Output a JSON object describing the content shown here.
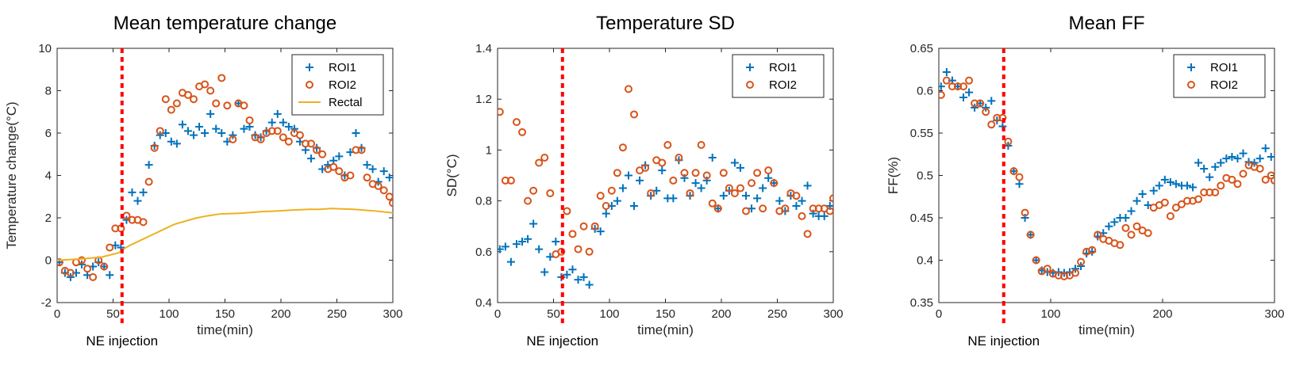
{
  "colors": {
    "roi1": "#0072BD",
    "roi2": "#D95319",
    "rectal": "#EDB120",
    "injection_line": "#FF0000",
    "axes": "#262626"
  },
  "annotation": {
    "label": "NE injection",
    "x": 58
  },
  "chart_data": [
    {
      "type": "scatter",
      "title": "Mean temperature change",
      "xlabel": "time(min)",
      "ylabel": "Temperature change(°C)",
      "xlim": [
        0,
        300
      ],
      "ylim": [
        -2,
        10
      ],
      "xticks": [
        0,
        50,
        100,
        150,
        200,
        250,
        300
      ],
      "yticks": [
        -2,
        0,
        2,
        4,
        6,
        8,
        10
      ],
      "grid": false,
      "legend": "top-right",
      "series": [
        {
          "name": "ROI1",
          "marker": "plus",
          "x": [
            2,
            7,
            12,
            17,
            22,
            27,
            32,
            37,
            42,
            47,
            52,
            57,
            62,
            67,
            72,
            77,
            82,
            87,
            92,
            97,
            102,
            107,
            112,
            117,
            122,
            127,
            132,
            137,
            142,
            147,
            152,
            157,
            162,
            167,
            172,
            177,
            182,
            187,
            192,
            197,
            202,
            207,
            212,
            217,
            222,
            227,
            232,
            237,
            242,
            247,
            252,
            257,
            262,
            267,
            272,
            277,
            282,
            287,
            292,
            297
          ],
          "y": [
            -0.1,
            -0.6,
            -0.8,
            -0.6,
            -0.2,
            -0.7,
            -0.3,
            -0.1,
            -0.3,
            -0.7,
            0.7,
            0.6,
            1.9,
            3.2,
            2.8,
            3.2,
            4.5,
            5.4,
            5.9,
            6.0,
            5.6,
            5.5,
            6.4,
            6.1,
            5.9,
            6.3,
            6.0,
            6.9,
            6.2,
            6.0,
            5.6,
            5.9,
            7.4,
            6.2,
            6.3,
            5.9,
            5.8,
            6.1,
            6.5,
            6.9,
            6.5,
            6.3,
            6.2,
            5.6,
            5.2,
            4.8,
            5.3,
            4.3,
            4.5,
            4.7,
            4.9,
            4.0,
            5.1,
            6.0,
            5.3,
            4.5,
            4.3,
            3.7,
            4.2,
            3.9
          ]
        },
        {
          "name": "ROI2",
          "marker": "circle",
          "x": [
            2,
            7,
            12,
            17,
            22,
            27,
            32,
            37,
            42,
            47,
            52,
            57,
            62,
            67,
            72,
            77,
            82,
            87,
            92,
            97,
            102,
            107,
            112,
            117,
            122,
            127,
            132,
            137,
            142,
            147,
            152,
            157,
            162,
            167,
            172,
            177,
            182,
            187,
            192,
            197,
            202,
            207,
            212,
            217,
            222,
            227,
            232,
            237,
            242,
            247,
            252,
            257,
            262,
            267,
            272,
            277,
            282,
            287,
            292,
            297,
            300
          ],
          "y": [
            -0.1,
            -0.5,
            -0.6,
            -0.1,
            0.0,
            -0.4,
            -0.8,
            0.0,
            -0.3,
            0.6,
            1.5,
            1.5,
            2.1,
            1.9,
            1.9,
            1.8,
            3.7,
            5.3,
            6.1,
            7.6,
            7.1,
            7.4,
            7.9,
            7.8,
            7.6,
            8.2,
            8.3,
            8.0,
            7.4,
            8.6,
            7.3,
            5.7,
            7.4,
            7.3,
            6.6,
            5.8,
            5.7,
            6.0,
            6.1,
            6.1,
            5.8,
            5.6,
            6.0,
            5.9,
            5.5,
            5.5,
            5.2,
            5.0,
            4.3,
            4.4,
            4.2,
            3.9,
            4.0,
            5.2,
            5.2,
            3.9,
            3.6,
            3.5,
            3.3,
            3.0,
            2.7
          ]
        },
        {
          "name": "Rectal",
          "marker": "line",
          "x": [
            0,
            20,
            40,
            55,
            60,
            65,
            75,
            85,
            95,
            105,
            115,
            125,
            135,
            145,
            155,
            165,
            175,
            185,
            195,
            205,
            215,
            225,
            235,
            245,
            255,
            265,
            275,
            285,
            295,
            300
          ],
          "y": [
            0.0,
            0.05,
            0.15,
            0.35,
            0.55,
            0.7,
            0.95,
            1.2,
            1.45,
            1.7,
            1.85,
            2.0,
            2.1,
            2.18,
            2.2,
            2.22,
            2.26,
            2.3,
            2.32,
            2.35,
            2.38,
            2.4,
            2.4,
            2.44,
            2.42,
            2.4,
            2.36,
            2.32,
            2.26,
            2.24
          ]
        }
      ]
    },
    {
      "type": "scatter",
      "title": "Temperature SD",
      "xlabel": "time(min)",
      "ylabel": "SD(°C)",
      "xlim": [
        0,
        300
      ],
      "ylim": [
        0.4,
        1.4
      ],
      "xticks": [
        0,
        50,
        100,
        150,
        200,
        250,
        300
      ],
      "yticks": [
        0.4,
        0.6,
        0.8,
        1,
        1.2,
        1.4
      ],
      "grid": false,
      "legend": "top-right",
      "series": [
        {
          "name": "ROI1",
          "marker": "plus",
          "x": [
            2,
            7,
            12,
            17,
            22,
            27,
            32,
            37,
            42,
            47,
            52,
            57,
            62,
            67,
            72,
            77,
            82,
            87,
            92,
            97,
            102,
            107,
            112,
            117,
            122,
            127,
            132,
            137,
            142,
            147,
            152,
            157,
            162,
            167,
            172,
            177,
            182,
            187,
            192,
            197,
            202,
            207,
            212,
            217,
            222,
            227,
            232,
            237,
            242,
            247,
            252,
            257,
            262,
            267,
            272,
            277,
            282,
            287,
            292,
            297
          ],
          "y": [
            0.61,
            0.62,
            0.56,
            0.63,
            0.64,
            0.65,
            0.71,
            0.61,
            0.52,
            0.58,
            0.64,
            0.5,
            0.51,
            0.53,
            0.49,
            0.5,
            0.47,
            0.69,
            0.68,
            0.75,
            0.78,
            0.8,
            0.85,
            0.9,
            0.78,
            0.88,
            0.94,
            0.82,
            0.84,
            0.92,
            0.81,
            0.81,
            0.96,
            0.89,
            0.82,
            0.87,
            0.85,
            0.88,
            0.97,
            0.77,
            0.82,
            0.84,
            0.95,
            0.93,
            0.82,
            0.77,
            0.81,
            0.85,
            0.89,
            0.87,
            0.8,
            0.76,
            0.82,
            0.78,
            0.8,
            0.86,
            0.75,
            0.74,
            0.74,
            0.78
          ]
        },
        {
          "name": "ROI2",
          "marker": "circle",
          "x": [
            2,
            7,
            12,
            17,
            22,
            27,
            32,
            37,
            42,
            47,
            52,
            57,
            62,
            67,
            72,
            77,
            82,
            87,
            92,
            97,
            102,
            107,
            112,
            117,
            122,
            127,
            132,
            137,
            142,
            147,
            152,
            157,
            162,
            167,
            172,
            177,
            182,
            187,
            192,
            197,
            202,
            207,
            212,
            217,
            222,
            227,
            232,
            237,
            242,
            247,
            252,
            257,
            262,
            267,
            272,
            277,
            282,
            287,
            292,
            297,
            300
          ],
          "y": [
            1.15,
            0.88,
            0.88,
            1.11,
            1.07,
            0.8,
            0.84,
            0.95,
            0.97,
            0.83,
            0.59,
            0.6,
            0.76,
            0.67,
            0.61,
            0.7,
            0.6,
            0.7,
            0.82,
            0.78,
            0.84,
            0.91,
            1.01,
            1.24,
            1.14,
            0.92,
            0.93,
            0.83,
            0.96,
            0.95,
            1.02,
            0.88,
            0.97,
            0.91,
            0.83,
            0.91,
            1.02,
            0.9,
            0.79,
            0.77,
            0.91,
            0.85,
            0.83,
            0.85,
            0.76,
            0.87,
            0.91,
            0.77,
            0.92,
            0.87,
            0.76,
            0.77,
            0.83,
            0.82,
            0.74,
            0.67,
            0.77,
            0.77,
            0.77,
            0.76,
            0.81
          ]
        }
      ]
    },
    {
      "type": "scatter",
      "title": "Mean FF",
      "xlabel": "time(min)",
      "ylabel": "FF(%)",
      "xlim": [
        0,
        300
      ],
      "ylim": [
        0.35,
        0.65
      ],
      "xticks": [
        0,
        100,
        200,
        300
      ],
      "yticks": [
        0.35,
        0.4,
        0.45,
        0.5,
        0.55,
        0.6,
        0.65
      ],
      "grid": false,
      "legend": "top-right",
      "series": [
        {
          "name": "ROI1",
          "marker": "plus",
          "x": [
            2,
            7,
            12,
            17,
            22,
            27,
            32,
            37,
            42,
            47,
            52,
            57,
            62,
            67,
            72,
            77,
            82,
            87,
            92,
            97,
            102,
            107,
            112,
            117,
            122,
            127,
            132,
            137,
            142,
            147,
            152,
            157,
            162,
            167,
            172,
            177,
            182,
            187,
            192,
            197,
            202,
            207,
            212,
            217,
            222,
            227,
            232,
            237,
            242,
            247,
            252,
            257,
            262,
            267,
            272,
            277,
            282,
            287,
            292,
            297
          ],
          "y": [
            0.605,
            0.622,
            0.612,
            0.605,
            0.592,
            0.598,
            0.58,
            0.585,
            0.58,
            0.588,
            0.565,
            0.558,
            0.535,
            0.505,
            0.49,
            0.45,
            0.43,
            0.4,
            0.388,
            0.386,
            0.385,
            0.386,
            0.385,
            0.386,
            0.39,
            0.393,
            0.408,
            0.41,
            0.428,
            0.432,
            0.44,
            0.445,
            0.45,
            0.45,
            0.458,
            0.47,
            0.478,
            0.465,
            0.482,
            0.488,
            0.495,
            0.492,
            0.49,
            0.488,
            0.488,
            0.486,
            0.515,
            0.508,
            0.498,
            0.51,
            0.515,
            0.52,
            0.522,
            0.52,
            0.526,
            0.516,
            0.515,
            0.52,
            0.532,
            0.522
          ]
        },
        {
          "name": "ROI2",
          "marker": "circle",
          "x": [
            2,
            7,
            12,
            17,
            22,
            27,
            32,
            37,
            42,
            47,
            52,
            57,
            62,
            67,
            72,
            77,
            82,
            87,
            92,
            97,
            102,
            107,
            112,
            117,
            122,
            127,
            132,
            137,
            142,
            147,
            152,
            157,
            162,
            167,
            172,
            177,
            182,
            187,
            192,
            197,
            202,
            207,
            212,
            217,
            222,
            227,
            232,
            237,
            242,
            247,
            252,
            257,
            262,
            267,
            272,
            277,
            282,
            287,
            292,
            297,
            300
          ],
          "y": [
            0.595,
            0.612,
            0.605,
            0.605,
            0.605,
            0.612,
            0.585,
            0.585,
            0.575,
            0.56,
            0.568,
            0.568,
            0.54,
            0.505,
            0.498,
            0.456,
            0.43,
            0.4,
            0.387,
            0.39,
            0.384,
            0.382,
            0.381,
            0.382,
            0.385,
            0.398,
            0.41,
            0.412,
            0.43,
            0.425,
            0.423,
            0.42,
            0.418,
            0.438,
            0.43,
            0.44,
            0.435,
            0.432,
            0.462,
            0.465,
            0.468,
            0.452,
            0.462,
            0.466,
            0.47,
            0.47,
            0.472,
            0.48,
            0.48,
            0.48,
            0.488,
            0.497,
            0.495,
            0.49,
            0.502,
            0.512,
            0.51,
            0.508,
            0.495,
            0.5,
            0.494
          ]
        }
      ]
    }
  ]
}
